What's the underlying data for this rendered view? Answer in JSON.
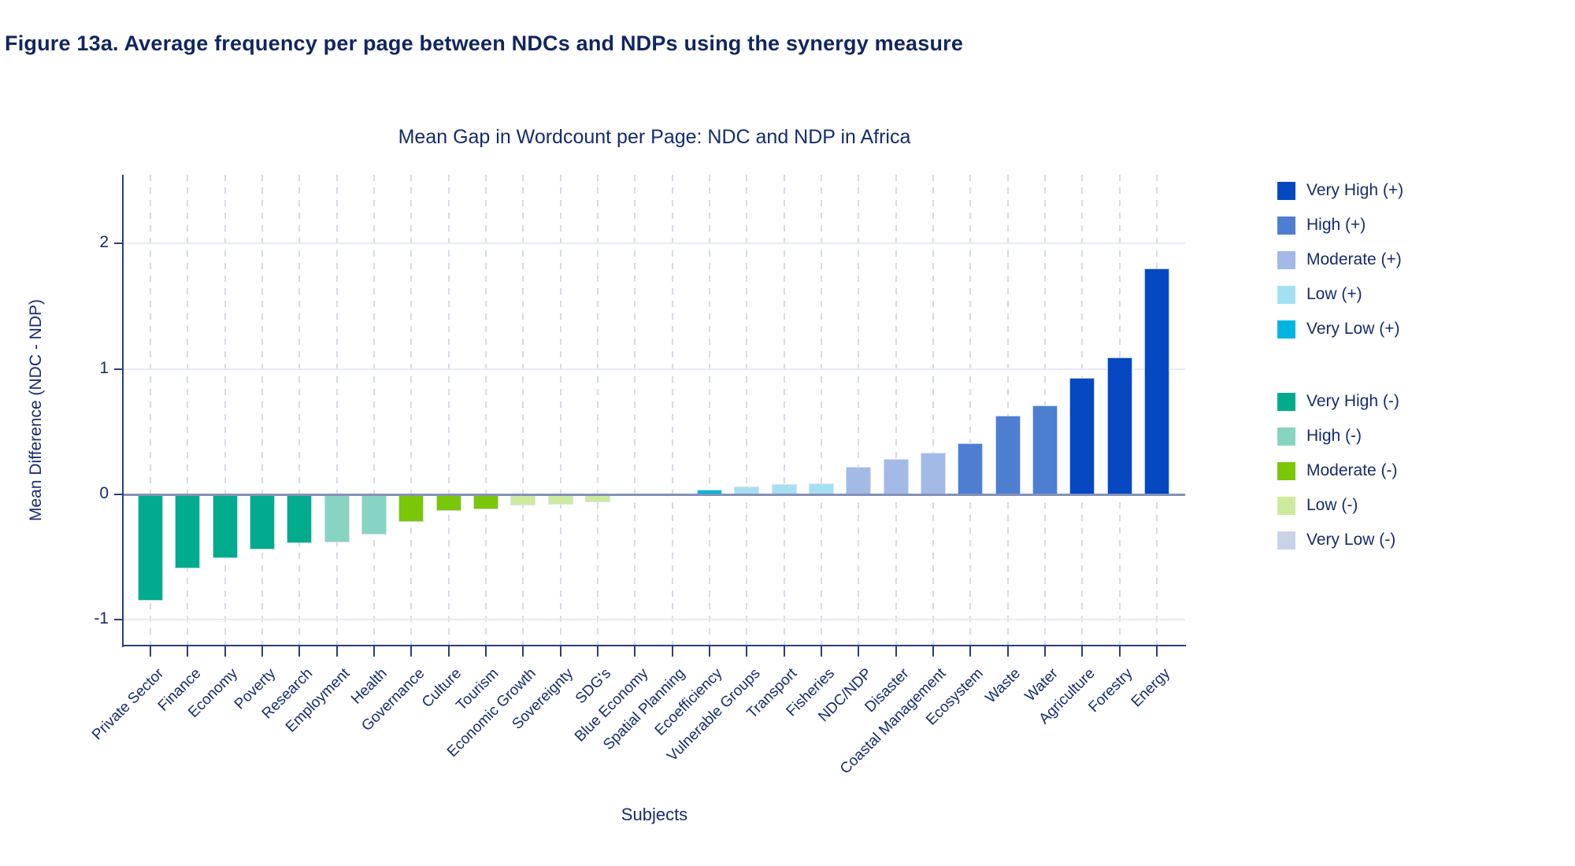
{
  "figure_title": "Figure 13a. Average frequency per page between NDCs and NDPs using the synergy measure",
  "chart_data": {
    "type": "bar",
    "title": "Mean Gap in Wordcount per Page: NDC and NDP in Africa",
    "xlabel": "Subjects",
    "ylabel": "Mean Difference (NDC - NDP)",
    "ylim": [
      -1.19,
      2.55
    ],
    "yticks": [
      2,
      1,
      0,
      -1
    ],
    "grid": "horizontal solid lines at ticks, vertical dashed lines at each category",
    "legend_position": "right",
    "categories": [
      "Private Sector",
      "Finance",
      "Economy",
      "Poverty",
      "Research",
      "Employment",
      "Health",
      "Governance",
      "Culture",
      "Tourism",
      "Economic Growth",
      "Sovereignty",
      "SDG's",
      "Blue Economy",
      "Spatial Planning",
      "Ecoefficiency",
      "Vulnerable Groups",
      "Transport",
      "Fisheries",
      "NDC/NDP",
      "Disaster",
      "Coastal Management",
      "Ecosystem",
      "Waste",
      "Water",
      "Agriculture",
      "Forestry",
      "Energy"
    ],
    "values": [
      -0.85,
      -0.59,
      -0.51,
      -0.44,
      -0.39,
      -0.38,
      -0.32,
      -0.22,
      -0.13,
      -0.12,
      -0.09,
      -0.08,
      -0.06,
      0,
      0,
      0.04,
      0.06,
      0.08,
      0.09,
      0.22,
      0.28,
      0.33,
      0.41,
      0.63,
      0.71,
      0.93,
      1.09,
      1.8
    ],
    "levels": [
      "very_high_neg",
      "very_high_neg",
      "very_high_neg",
      "very_high_neg",
      "very_high_neg",
      "high_neg",
      "high_neg",
      "moderate_neg",
      "moderate_neg",
      "moderate_neg",
      "low_neg",
      "low_neg",
      "low_neg",
      "very_low_neg",
      "very_low_neg",
      "very_low_pos",
      "low_pos",
      "low_pos",
      "low_pos",
      "moderate_pos",
      "moderate_pos",
      "moderate_pos",
      "high_pos",
      "high_pos",
      "high_pos",
      "very_high_pos",
      "very_high_pos",
      "very_high_pos"
    ]
  },
  "level_colors": {
    "very_high_pos": "#0548c2",
    "high_pos": "#4e7ed2",
    "moderate_pos": "#a3bae6",
    "low_pos": "#a5e0f2",
    "very_low_pos": "#00b5e0",
    "very_high_neg": "#00ab8e",
    "high_neg": "#87d4c3",
    "moderate_neg": "#7ac609",
    "low_neg": "#cdeb9e",
    "very_low_neg": "#c9d3e8"
  },
  "legend": {
    "groups": [
      {
        "items": [
          {
            "label": "Very High (+)",
            "color": "#0548c2"
          },
          {
            "label": "High (+)",
            "color": "#4e7ed2"
          },
          {
            "label": "Moderate (+)",
            "color": "#a3bae6"
          },
          {
            "label": "Low (+)",
            "color": "#a5e0f2"
          },
          {
            "label": "Very Low (+)",
            "color": "#00b5e0"
          }
        ]
      },
      {
        "items": [
          {
            "label": "Very High (-)",
            "color": "#00ab8e"
          },
          {
            "label": "High (-)",
            "color": "#87d4c3"
          },
          {
            "label": "Moderate (-)",
            "color": "#7ac609"
          },
          {
            "label": "Low (-)",
            "color": "#cdeb9e"
          },
          {
            "label": "Very Low (-)",
            "color": "#c9d3e8"
          }
        ]
      }
    ]
  },
  "style_colors": {
    "navy_text": "#152c6e",
    "figure_title_text": "#10265f",
    "zero_line": "#8492b8",
    "gridline": "#e7ebf4",
    "dashed_gridline": "#d5dbe9",
    "axis_spine": "#2c3e7b",
    "background": "#ffffff"
  }
}
